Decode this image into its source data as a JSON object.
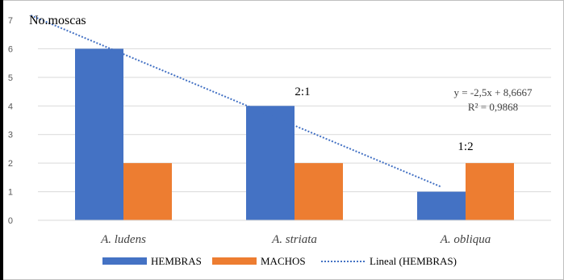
{
  "chart_data": {
    "type": "bar",
    "ylabel": "No.moscas",
    "categories": [
      "A. ludens",
      "A. striata",
      "A. obliqua"
    ],
    "series": [
      {
        "name": "HEMBRAS",
        "values": [
          6,
          4,
          1
        ],
        "color": "#4472C4"
      },
      {
        "name": "MACHOS",
        "values": [
          2,
          2,
          2
        ],
        "color": "#ED7D31"
      }
    ],
    "trendline": {
      "name": "Lineal (HEMBRAS)",
      "slope": -2.5,
      "intercept": 8.6667,
      "equation": "y = -2,5x + 8,6667",
      "r2": "R² = 0,9868",
      "color": "#4472C4"
    },
    "ylim": [
      0,
      7
    ],
    "yticks": [
      0,
      1,
      2,
      3,
      4,
      5,
      6,
      7
    ],
    "grid": true,
    "legend": "bottom",
    "annotations": [
      {
        "text": "2:1",
        "category": 1
      },
      {
        "text": "1:2",
        "category": 2
      }
    ]
  }
}
